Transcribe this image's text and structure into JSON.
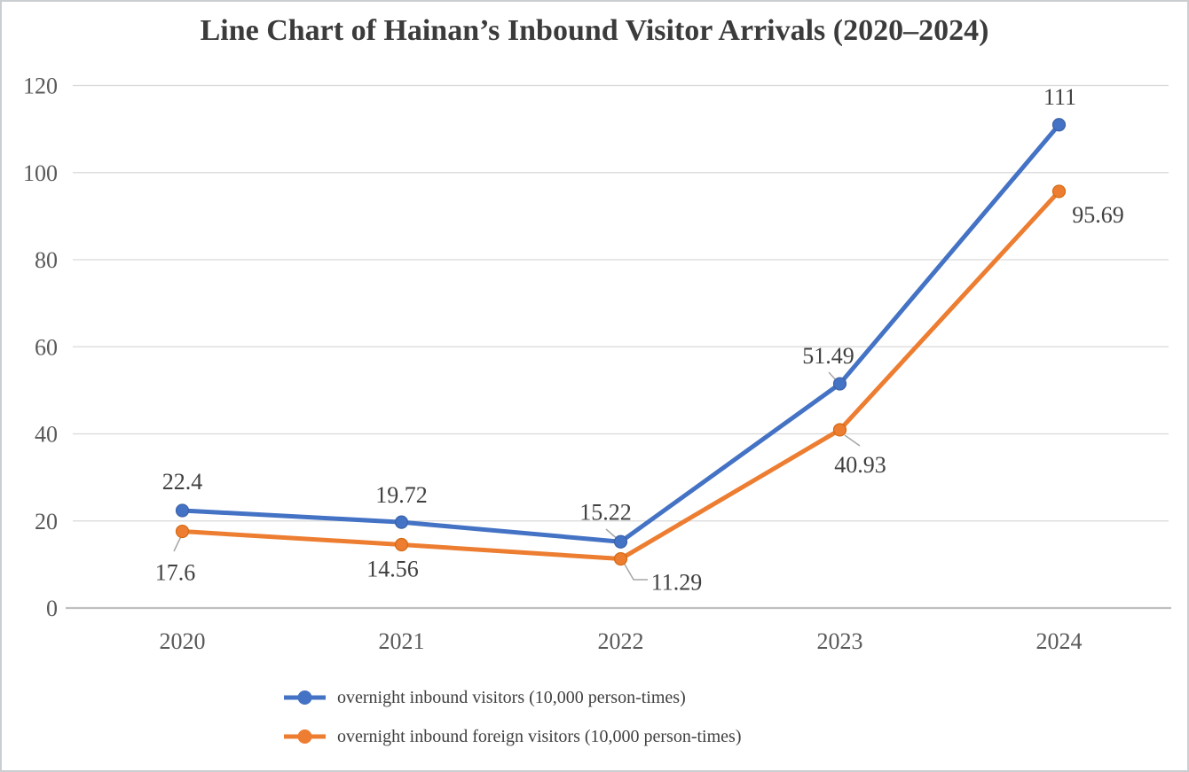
{
  "page": {
    "background": "#ffffff",
    "border_color": "#cbced1"
  },
  "chart_data": {
    "type": "line",
    "title": "Line Chart of Hainan’s Inbound Visitor Arrivals (2020–2024)",
    "categories": [
      "2020",
      "2021",
      "2022",
      "2023",
      "2024"
    ],
    "series": [
      {
        "name": "overnight inbound visitors (10,000 person-times)",
        "color": "#4472C4",
        "marker_edge": "#3A62A9",
        "values": [
          22.4,
          19.72,
          15.22,
          51.49,
          111
        ],
        "data_labels": [
          "22.4",
          "19.72",
          "15.22",
          "51.49",
          "111"
        ]
      },
      {
        "name": "overnight inbound foreign visitors (10,000 person-times)",
        "color": "#ED7D31",
        "marker_edge": "#D26A12",
        "values": [
          17.6,
          14.56,
          11.29,
          40.93,
          95.69
        ],
        "data_labels": [
          "17.6",
          "14.56",
          "11.29",
          "40.93",
          "95.69"
        ]
      }
    ],
    "y_axis": {
      "min": 0,
      "max": 120,
      "step": 20,
      "ticks": [
        "0",
        "20",
        "40",
        "60",
        "80",
        "100",
        "120"
      ]
    },
    "x_axis": {
      "ticks": [
        "2020",
        "2021",
        "2022",
        "2023",
        "2024"
      ]
    },
    "grid": true,
    "legend_position": "bottom",
    "colors": {
      "gridline": "#D9D9D9",
      "axis_line": "#BFBFBF",
      "tick_label": "#595959",
      "data_label": "#404040",
      "leader_line": "#A6A6A6",
      "title": "#3b3b3b"
    }
  }
}
